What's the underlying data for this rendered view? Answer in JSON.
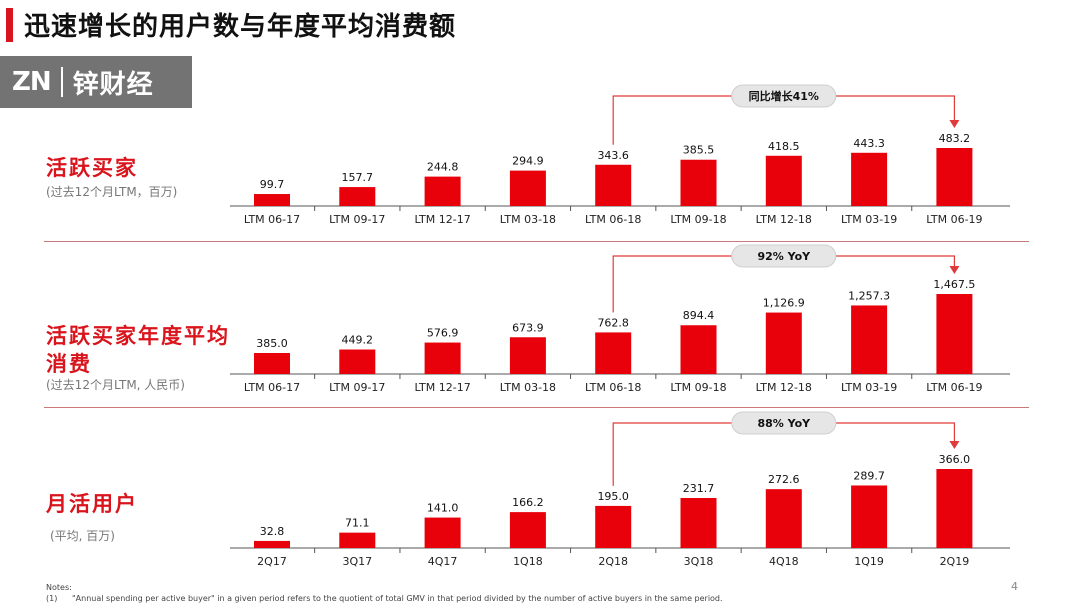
{
  "page": {
    "title": "迅速增长的用户数与年度平均消费额",
    "page_number": "4",
    "notes_label": "Notes:",
    "notes": [
      {
        "num": "(1)",
        "text": "\"Annual spending per active buyer\" in a given period refers to the quotient of total GMV in that period divided by the number of active buyers in the same period."
      }
    ]
  },
  "watermark": {
    "logo": "ZN",
    "text": "锌财经"
  },
  "colors": {
    "bar": "#e8000b",
    "accent": "#d9141c",
    "growth_line": "#e03a3a"
  },
  "chart_data": [
    {
      "type": "bar",
      "title": "活跃买家",
      "subtitle": "(过去12个月LTM，百万)",
      "categories": [
        "LTM 06-17",
        "LTM 09-17",
        "LTM 12-17",
        "LTM 03-18",
        "LTM 06-18",
        "LTM 09-18",
        "LTM 12-18",
        "LTM 03-19",
        "LTM 06-19"
      ],
      "values": [
        99.7,
        157.7,
        244.8,
        294.9,
        343.6,
        385.5,
        418.5,
        443.3,
        483.2
      ],
      "labels": [
        "99.7",
        "157.7",
        "244.8",
        "294.9",
        "343.6",
        "385.5",
        "418.5",
        "443.3",
        "483.2"
      ],
      "annotation": {
        "text": "同比增长41%",
        "from": "LTM 06-18",
        "to": "LTM 06-19"
      }
    },
    {
      "type": "bar",
      "title": "活跃买家年度平均消费",
      "subtitle": "(过去12个月LTM, 人民币)",
      "categories": [
        "LTM 06-17",
        "LTM 09-17",
        "LTM 12-17",
        "LTM 03-18",
        "LTM 06-18",
        "LTM 09-18",
        "LTM 12-18",
        "LTM 03-19",
        "LTM 06-19"
      ],
      "values": [
        385.0,
        449.2,
        576.9,
        673.9,
        762.8,
        894.4,
        1126.9,
        1257.3,
        1467.5
      ],
      "labels": [
        "385.0",
        "449.2",
        "576.9",
        "673.9",
        "762.8",
        "894.4",
        "1,126.9",
        "1,257.3",
        "1,467.5"
      ],
      "annotation": {
        "text": "92% YoY",
        "from": "LTM 06-18",
        "to": "LTM 06-19"
      }
    },
    {
      "type": "bar",
      "title": "月活用户",
      "subtitle": "(平均, 百万)",
      "categories": [
        "2Q17",
        "3Q17",
        "4Q17",
        "1Q18",
        "2Q18",
        "3Q18",
        "4Q18",
        "1Q19",
        "2Q19"
      ],
      "values": [
        32.8,
        71.1,
        141.0,
        166.2,
        195.0,
        231.7,
        272.6,
        289.7,
        366.0
      ],
      "labels": [
        "32.8",
        "71.1",
        "141.0",
        "166.2",
        "195.0",
        "231.7",
        "272.6",
        "289.7",
        "366.0"
      ],
      "annotation": {
        "text": "88% YoY",
        "from": "2Q18",
        "to": "2Q19"
      }
    }
  ]
}
